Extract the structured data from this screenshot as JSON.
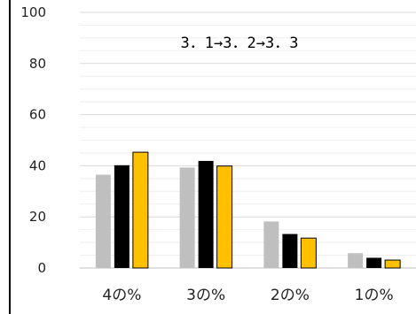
{
  "chart_data": {
    "type": "bar",
    "title": "3．1→3．2→3．3",
    "categories": [
      "4の%",
      "3の%",
      "2の%",
      "1の%"
    ],
    "series": [
      {
        "values": [
          36.5,
          39.3,
          18.2,
          5.8
        ],
        "color": "#bfbfbf",
        "border": "#bfbfbf"
      },
      {
        "values": [
          40.2,
          41.9,
          13.3,
          4.0
        ],
        "color": "#000000",
        "border": "#000000"
      },
      {
        "values": [
          45.3,
          39.9,
          11.7,
          3.1
        ],
        "color": "#ffc000",
        "border": "#000000"
      }
    ],
    "y_ticks": [
      "0",
      "20",
      "40",
      "60",
      "80",
      "100"
    ],
    "ylim": [
      0,
      100
    ],
    "minor_step": 5,
    "grid": true,
    "legend": "none"
  }
}
